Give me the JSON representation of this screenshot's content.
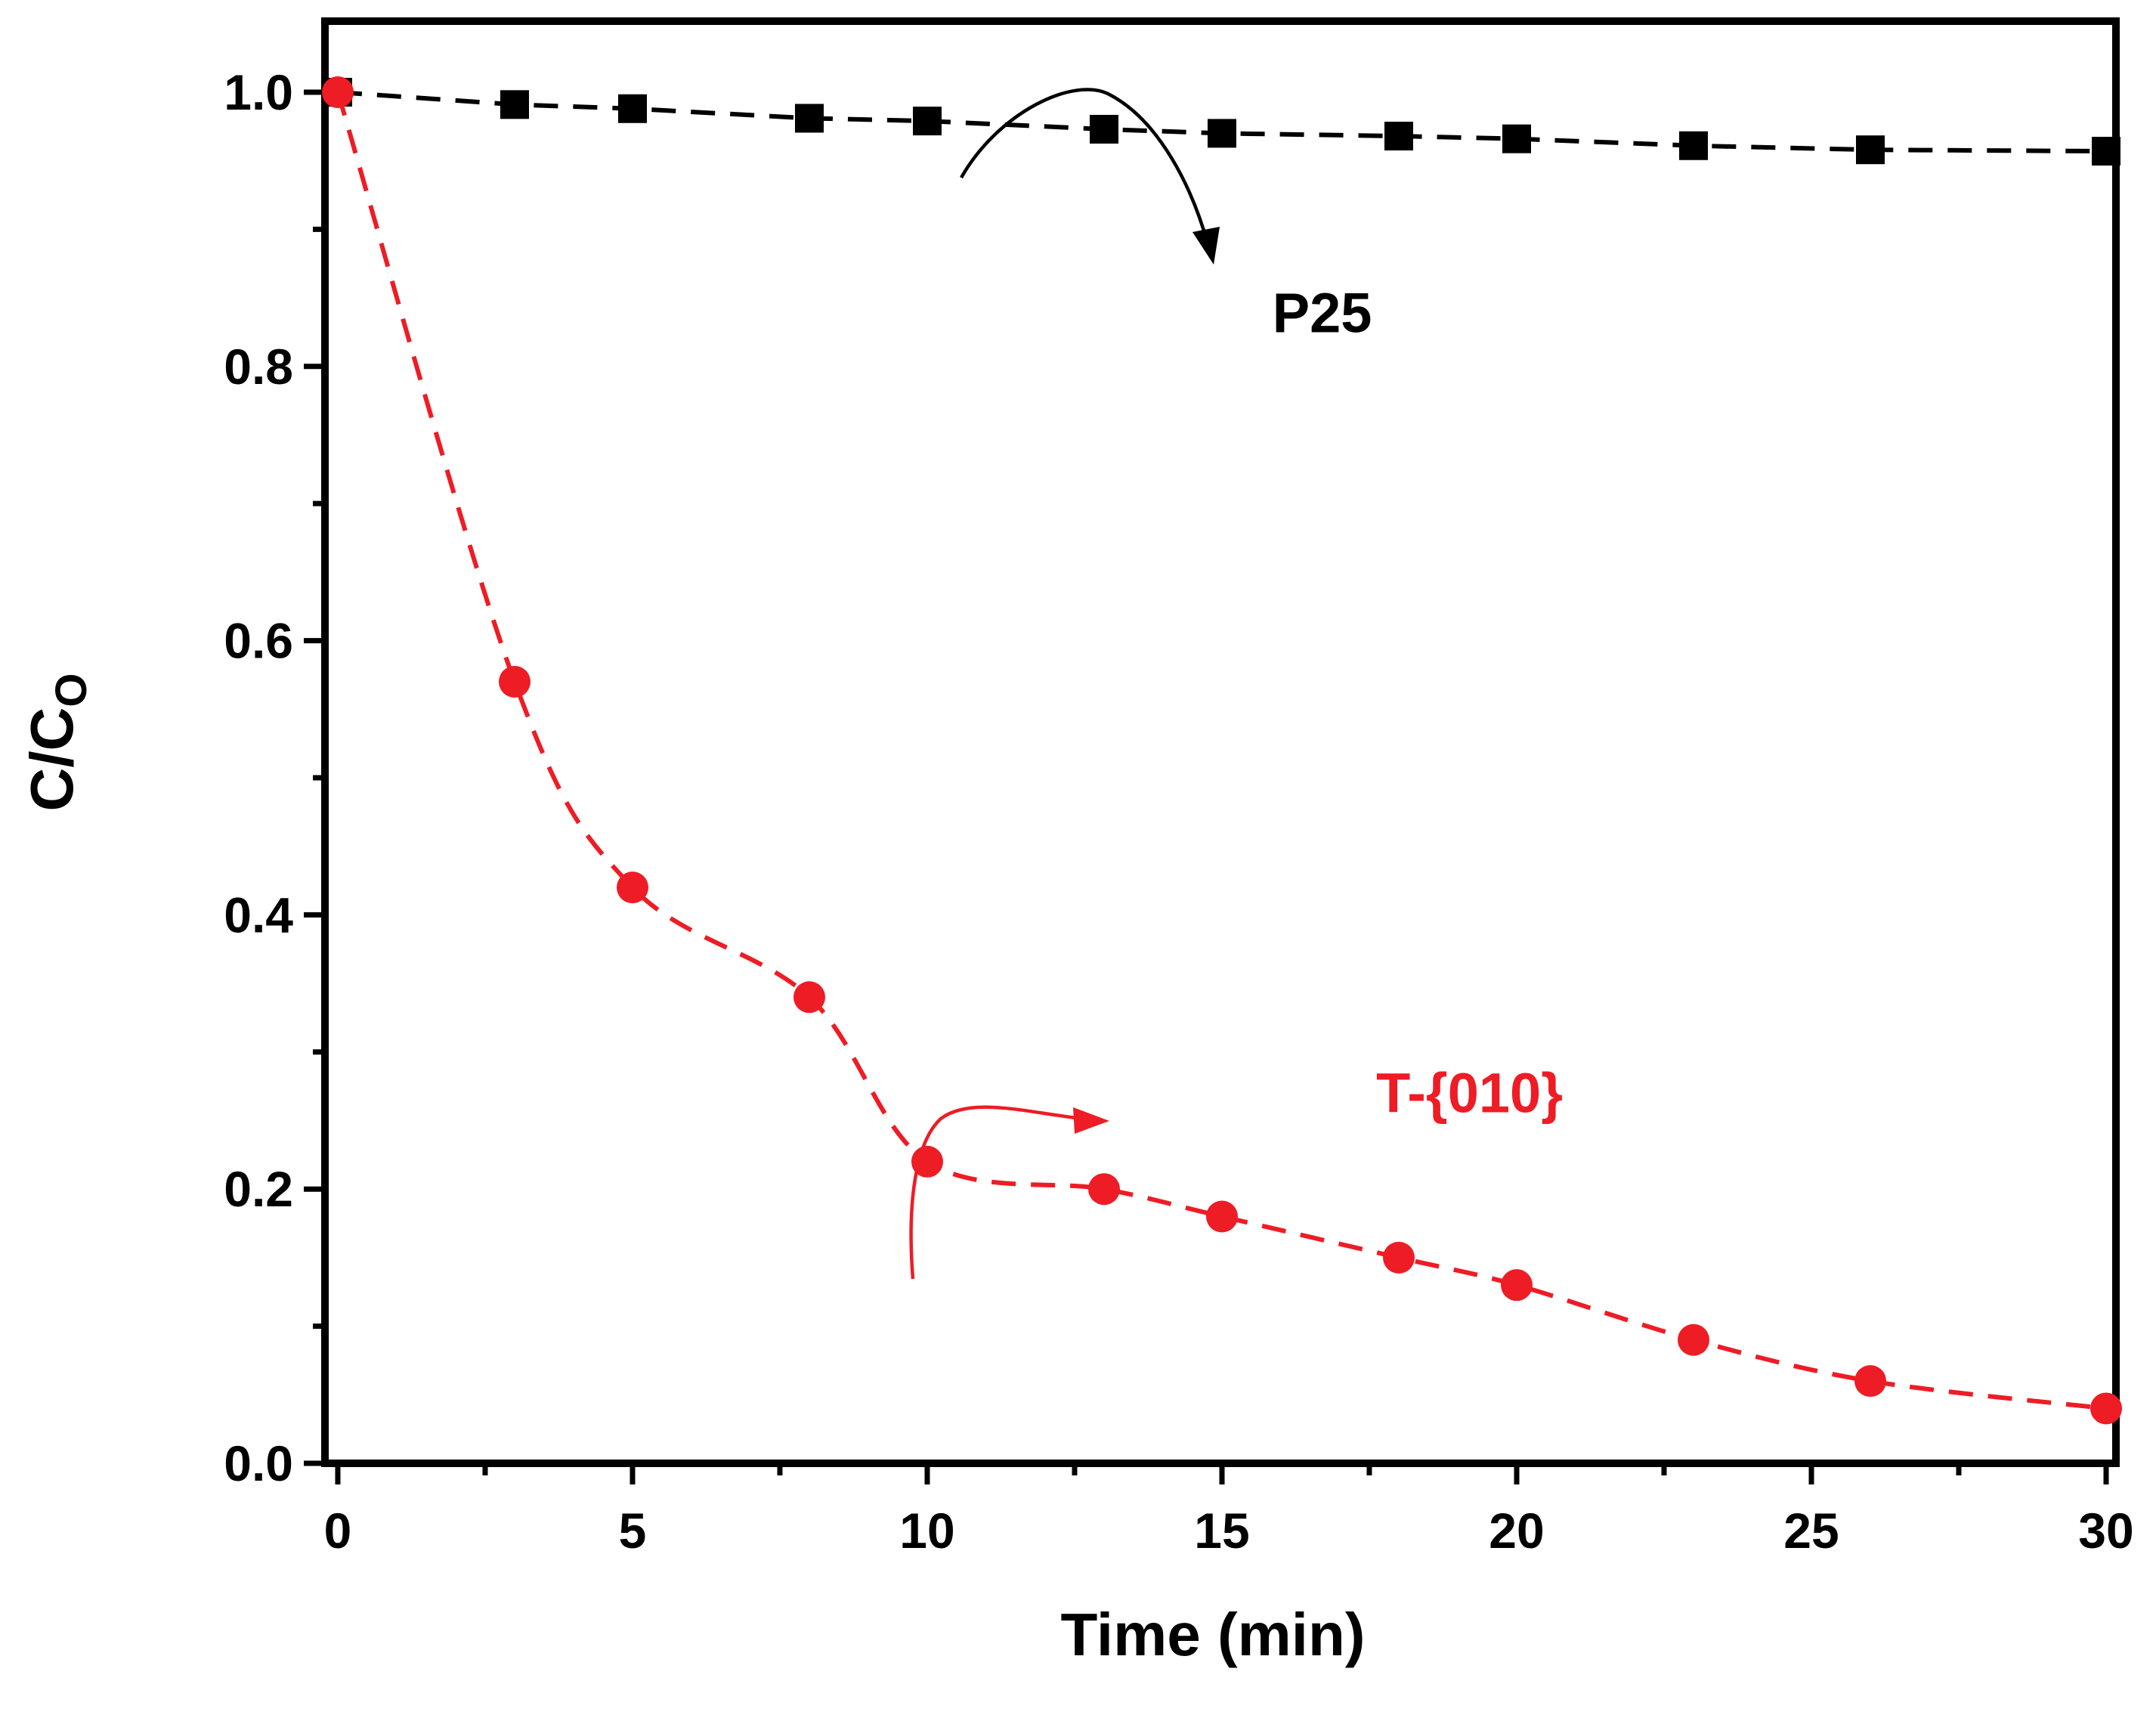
{
  "chart_data": {
    "type": "line",
    "title": "",
    "xlabel": "Time (min)",
    "ylabel": {
      "base": "C/C",
      "subscript": "O"
    },
    "xlim": [
      -0.2,
      30
    ],
    "ylim": [
      0.0,
      1.05
    ],
    "xticks": [
      0,
      5,
      10,
      15,
      20,
      25,
      30
    ],
    "xtick_labels": [
      "0",
      "5",
      "10",
      "15",
      "20",
      "25",
      "30"
    ],
    "yticks": [
      0.0,
      0.2,
      0.4,
      0.6,
      0.8,
      1.0
    ],
    "ytick_labels": [
      "0.0",
      "0.2",
      "0.4",
      "0.6",
      "0.8",
      "1.0"
    ],
    "grid": false,
    "series": [
      {
        "name": "P25",
        "color": "#000000",
        "marker": "square",
        "line": "dashed",
        "x": [
          0,
          3,
          5,
          8,
          10,
          13,
          15,
          18,
          20,
          23,
          26,
          30
        ],
        "y": [
          1.0,
          0.991,
          0.988,
          0.981,
          0.979,
          0.973,
          0.97,
          0.968,
          0.966,
          0.961,
          0.958,
          0.957
        ]
      },
      {
        "name": "T-{010}",
        "color": "#ee1c25",
        "marker": "circle",
        "line": "dashed",
        "x": [
          0,
          3,
          5,
          8,
          10,
          13,
          15,
          18,
          20,
          23,
          26,
          30
        ],
        "y": [
          1.0,
          0.57,
          0.42,
          0.34,
          0.22,
          0.2,
          0.18,
          0.15,
          0.13,
          0.09,
          0.06,
          0.04
        ]
      }
    ],
    "annotations": [
      {
        "text": "P25",
        "color": "#000000",
        "x": 16.7,
        "y": 0.825
      },
      {
        "text": "T-{010}",
        "color": "#ee1c25",
        "x": 19.2,
        "y": 0.256
      }
    ]
  }
}
